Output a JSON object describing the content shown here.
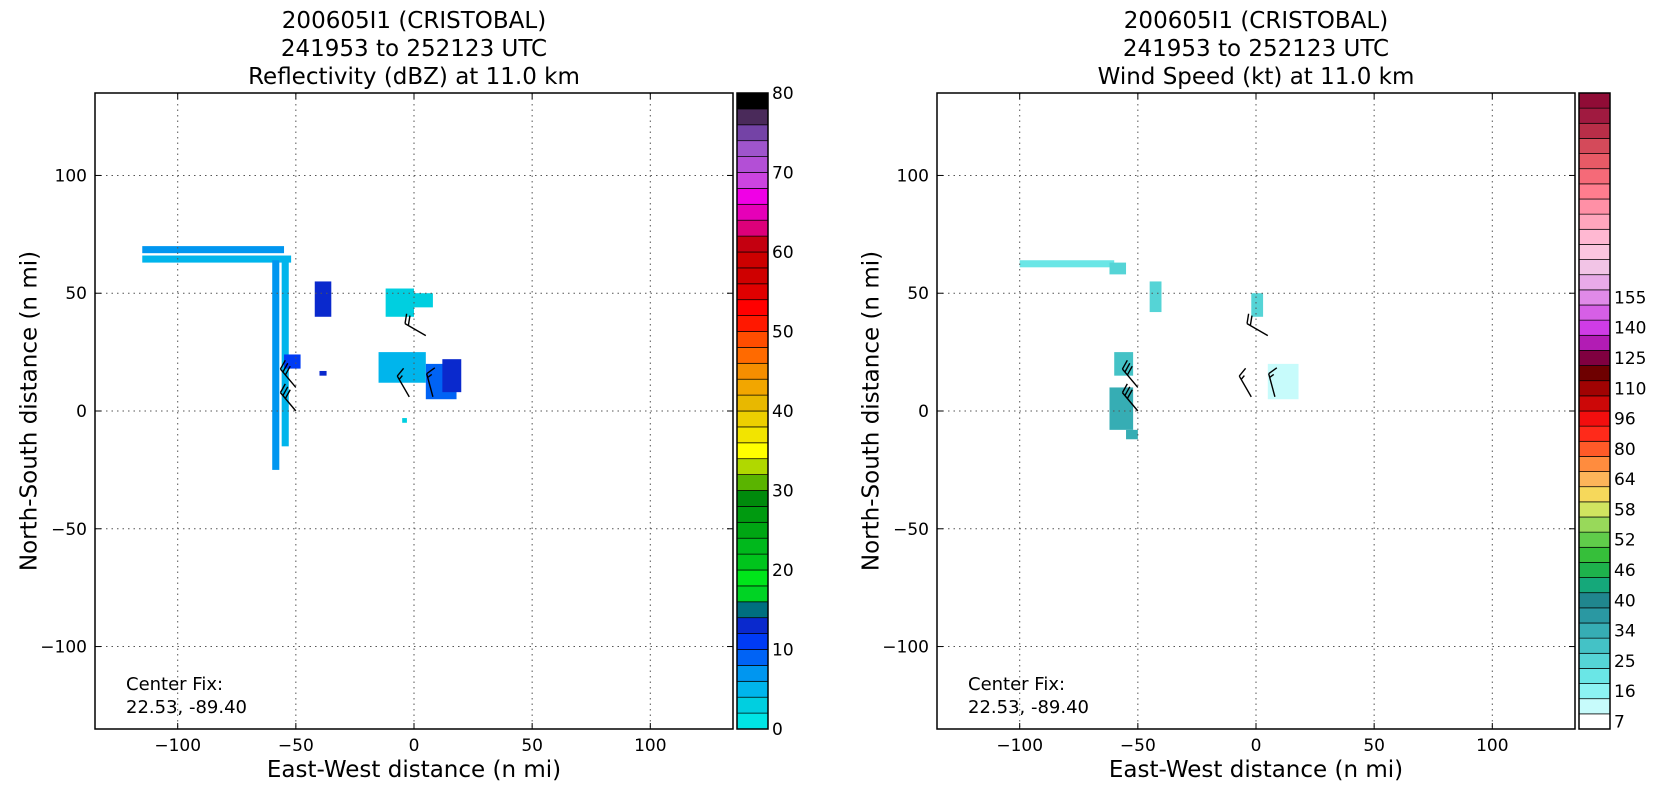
{
  "chart_data": [
    {
      "type": "heatmap",
      "title_lines": [
        "200605I1 (CRISTOBAL)",
        "241953 to 252123 UTC",
        "Reflectivity (dBZ) at 11.0 km"
      ],
      "xlabel": "East-West distance (n mi)",
      "ylabel": "North-South distance (n mi)",
      "xlim": [
        -135,
        135
      ],
      "ylim": [
        -135,
        135
      ],
      "xticks": [
        -100,
        -50,
        0,
        50,
        100
      ],
      "yticks": [
        -100,
        -50,
        0,
        50,
        100
      ],
      "xtick_labels": [
        "−100",
        "−50",
        "0",
        "50",
        "100"
      ],
      "ytick_labels": [
        "−100",
        "−50",
        "0",
        "50",
        "100"
      ],
      "grid": true,
      "annotation_lines": [
        "Center Fix:",
        "22.53, -89.40"
      ],
      "colorbar": {
        "min": 0,
        "max": 80,
        "colors": [
          "#00e5e5",
          "#00cfe0",
          "#00b5ec",
          "#0096f0",
          "#0063f5",
          "#003bf5",
          "#0a29cd",
          "#006f7f",
          "#00d324",
          "#00e51a",
          "#00c41c",
          "#00b81c",
          "#00a613",
          "#009a10",
          "#008a0c",
          "#5ab400",
          "#b0d800",
          "#ffff00",
          "#f2e400",
          "#edcf00",
          "#e8b800",
          "#f2a600",
          "#f58e00",
          "#ff6a00",
          "#ff4d00",
          "#ff1800",
          "#ff0000",
          "#e00000",
          "#cf0000",
          "#cc0000",
          "#c40010",
          "#dc007a",
          "#e600b8",
          "#f000e6",
          "#cc44e0",
          "#b34fd6",
          "#9f55cc",
          "#7443a6",
          "#4a2a5a",
          "#000000"
        ],
        "tick_values": [
          0,
          10,
          20,
          30,
          40,
          50,
          60,
          70,
          80
        ],
        "tick_labels": [
          "0",
          "10",
          "20",
          "30",
          "40",
          "50",
          "60",
          "70",
          "80"
        ]
      },
      "echoes": [
        {
          "x": [
            -115,
            -55
          ],
          "y": [
            67,
            70
          ],
          "value": 6
        },
        {
          "x": [
            -115,
            -52
          ],
          "y": [
            63,
            66
          ],
          "value": 4
        },
        {
          "x": [
            -60,
            -57
          ],
          "y": [
            -25,
            64
          ],
          "value": 6
        },
        {
          "x": [
            -56,
            -53
          ],
          "y": [
            -15,
            65
          ],
          "value": 4
        },
        {
          "x": [
            -55,
            -48
          ],
          "y": [
            18,
            24
          ],
          "value": 10
        },
        {
          "x": [
            -42,
            -35
          ],
          "y": [
            40,
            55
          ],
          "value": 13
        },
        {
          "x": [
            -40,
            -37
          ],
          "y": [
            15,
            17
          ],
          "value": 12
        },
        {
          "x": [
            -15,
            5
          ],
          "y": [
            12,
            25
          ],
          "value": 4
        },
        {
          "x": [
            -12,
            0
          ],
          "y": [
            40,
            52
          ],
          "value": 2
        },
        {
          "x": [
            0,
            8
          ],
          "y": [
            44,
            50
          ],
          "value": 2
        },
        {
          "x": [
            5,
            18
          ],
          "y": [
            5,
            20
          ],
          "value": 8
        },
        {
          "x": [
            12,
            20
          ],
          "y": [
            8,
            22
          ],
          "value": 13
        },
        {
          "x": [
            -5,
            -3
          ],
          "y": [
            -5,
            -3
          ],
          "value": 2
        }
      ],
      "wind_barbs": [
        {
          "x": 5,
          "y": 32,
          "direction_deg": 300,
          "speed_kt": 20
        },
        {
          "x": -50,
          "y": 10,
          "direction_deg": 320,
          "speed_kt": 30
        },
        {
          "x": -50,
          "y": 0,
          "direction_deg": 320,
          "speed_kt": 30
        },
        {
          "x": -2,
          "y": 6,
          "direction_deg": 330,
          "speed_kt": 15
        },
        {
          "x": 8,
          "y": 6,
          "direction_deg": 345,
          "speed_kt": 15
        }
      ]
    },
    {
      "type": "heatmap",
      "title_lines": [
        "200605I1 (CRISTOBAL)",
        "241953 to 252123 UTC",
        "Wind Speed (kt) at 11.0 km"
      ],
      "xlabel": "East-West distance (n mi)",
      "ylabel": "North-South distance (n mi)",
      "xlim": [
        -135,
        135
      ],
      "ylim": [
        -135,
        135
      ],
      "xticks": [
        -100,
        -50,
        0,
        50,
        100
      ],
      "yticks": [
        -100,
        -50,
        0,
        50,
        100
      ],
      "xtick_labels": [
        "−100",
        "−50",
        "0",
        "50",
        "100"
      ],
      "ytick_labels": [
        "−100",
        "−50",
        "0",
        "50",
        "100"
      ],
      "grid": true,
      "annotation_lines": [
        "Center Fix:",
        "22.53, -89.40"
      ],
      "colorbar": {
        "min": 7,
        "max": 160,
        "colors": [
          "#ffffff",
          "#c7fbfb",
          "#8cf3f3",
          "#6ae6e6",
          "#55d4d6",
          "#44c2c6",
          "#36adb4",
          "#2a98a2",
          "#20868e",
          "#15a87a",
          "#1eb24c",
          "#36bf3a",
          "#60cc4a",
          "#98d95a",
          "#d1e460",
          "#f6d85b",
          "#fdb45a",
          "#ff8c3e",
          "#ff5a28",
          "#ff2a1a",
          "#f20e0e",
          "#cc0808",
          "#a00303",
          "#6e0000",
          "#800040",
          "#b21cb4",
          "#cf3ce6",
          "#d65fe6",
          "#e08ae8",
          "#e8aae8",
          "#f2c4e6",
          "#fbc6df",
          "#ffb8d2",
          "#ffa6bd",
          "#ff90a6",
          "#ff7d8e",
          "#f56a78",
          "#e85a66",
          "#d44a5a",
          "#b82e48",
          "#a01a40",
          "#900c36"
        ],
        "tick_values": [
          7,
          16,
          25,
          34,
          40,
          46,
          52,
          58,
          64,
          80,
          96,
          110,
          125,
          140,
          155
        ],
        "tick_labels": [
          "7",
          "16",
          "25",
          "34",
          "40",
          "46",
          "52",
          "58",
          "64",
          "80",
          "96",
          "110",
          "125",
          "140",
          "155"
        ]
      },
      "echoes": [
        {
          "x": [
            -100,
            -60
          ],
          "y": [
            61,
            64
          ],
          "value": 18
        },
        {
          "x": [
            -62,
            -55
          ],
          "y": [
            58,
            63
          ],
          "value": 25
        },
        {
          "x": [
            -60,
            -52
          ],
          "y": [
            15,
            25
          ],
          "value": 28
        },
        {
          "x": [
            -62,
            -52
          ],
          "y": [
            -8,
            10
          ],
          "value": 30
        },
        {
          "x": [
            -45,
            -40
          ],
          "y": [
            42,
            55
          ],
          "value": 22
        },
        {
          "x": [
            -2,
            3
          ],
          "y": [
            40,
            50
          ],
          "value": 24
        },
        {
          "x": [
            -10,
            15
          ],
          "y": [
            15,
            25
          ],
          "value": 9
        },
        {
          "x": [
            5,
            18
          ],
          "y": [
            5,
            20
          ],
          "value": 14
        },
        {
          "x": [
            -55,
            -50
          ],
          "y": [
            -12,
            -8
          ],
          "value": 30
        }
      ],
      "wind_barbs": [
        {
          "x": 5,
          "y": 32,
          "direction_deg": 300,
          "speed_kt": 20
        },
        {
          "x": -50,
          "y": 10,
          "direction_deg": 320,
          "speed_kt": 30
        },
        {
          "x": -50,
          "y": 0,
          "direction_deg": 320,
          "speed_kt": 30
        },
        {
          "x": -2,
          "y": 6,
          "direction_deg": 330,
          "speed_kt": 15
        },
        {
          "x": 8,
          "y": 6,
          "direction_deg": 345,
          "speed_kt": 15
        }
      ]
    }
  ]
}
